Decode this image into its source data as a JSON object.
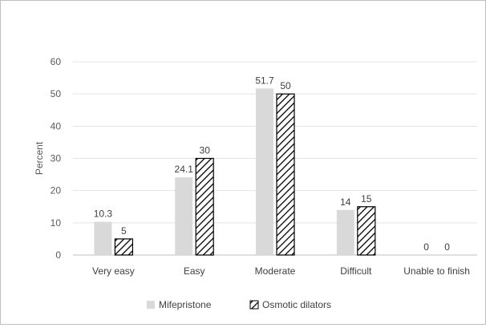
{
  "chart_data": {
    "type": "bar",
    "title": "",
    "xlabel": "",
    "ylabel": "Percent",
    "ylim": [
      0,
      60
    ],
    "yticks": [
      0,
      10,
      20,
      30,
      40,
      50,
      60
    ],
    "grid": true,
    "legend_position": "bottom",
    "categories": [
      "Very easy",
      "Easy",
      "Moderate",
      "Difficult",
      "Unable to finish"
    ],
    "series": [
      {
        "name": "Mifepristone",
        "values": [
          10.3,
          24.1,
          51.7,
          14,
          0
        ],
        "labels": [
          "10.3",
          "24.1",
          "51.7",
          "14",
          "0"
        ],
        "fill": "solid",
        "color": "#d9d9d9"
      },
      {
        "name": "Osmotic dilators",
        "values": [
          5,
          30,
          50,
          15,
          0
        ],
        "labels": [
          "5",
          "30",
          "50",
          "15",
          "0"
        ],
        "fill": "hatched",
        "color": "#000000"
      }
    ]
  }
}
